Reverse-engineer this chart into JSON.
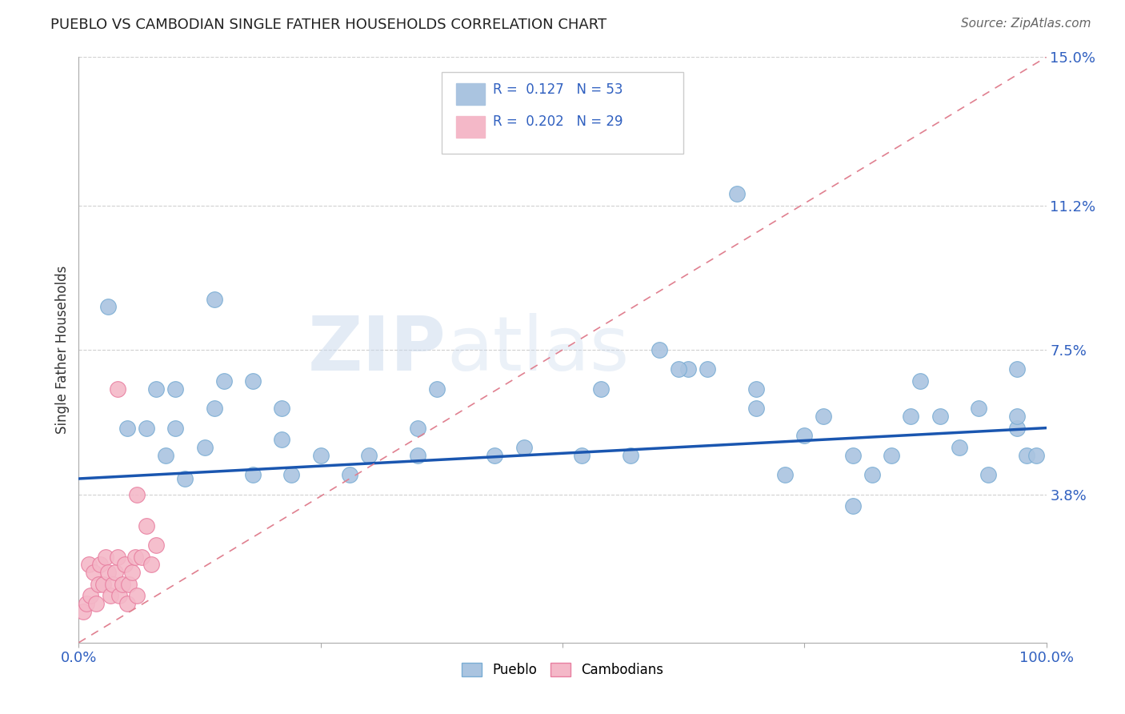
{
  "title": "PUEBLO VS CAMBODIAN SINGLE FATHER HOUSEHOLDS CORRELATION CHART",
  "source": "Source: ZipAtlas.com",
  "ylabel": "Single Father Households",
  "xlim": [
    0,
    1.0
  ],
  "ylim": [
    0,
    0.15
  ],
  "ytick_positions": [
    0.038,
    0.075,
    0.112,
    0.15
  ],
  "ytick_labels": [
    "3.8%",
    "7.5%",
    "11.2%",
    "15.0%"
  ],
  "pueblo_R": "0.127",
  "pueblo_N": "53",
  "cambodian_R": "0.202",
  "cambodian_N": "29",
  "pueblo_color": "#aac4e0",
  "pueblo_edge": "#7aadd4",
  "cambodian_color": "#f4b8c8",
  "cambodian_edge": "#e87fa0",
  "trend_blue_color": "#1a56b0",
  "trend_red_color": "#e08090",
  "watermark_zip": "ZIP",
  "watermark_atlas": "atlas",
  "pueblo_points_x": [
    0.03,
    0.08,
    0.14,
    0.05,
    0.07,
    0.09,
    0.11,
    0.13,
    0.1,
    0.1,
    0.14,
    0.15,
    0.18,
    0.21,
    0.21,
    0.22,
    0.18,
    0.25,
    0.28,
    0.3,
    0.35,
    0.35,
    0.37,
    0.43,
    0.46,
    0.52,
    0.54,
    0.57,
    0.6,
    0.63,
    0.65,
    0.68,
    0.7,
    0.73,
    0.75,
    0.77,
    0.8,
    0.82,
    0.84,
    0.86,
    0.87,
    0.89,
    0.91,
    0.93,
    0.94,
    0.7,
    0.97,
    0.97,
    0.97,
    0.98,
    0.62,
    0.99,
    0.8
  ],
  "pueblo_points_y": [
    0.086,
    0.065,
    0.088,
    0.055,
    0.055,
    0.048,
    0.042,
    0.05,
    0.065,
    0.055,
    0.06,
    0.067,
    0.067,
    0.06,
    0.052,
    0.043,
    0.043,
    0.048,
    0.043,
    0.048,
    0.048,
    0.055,
    0.065,
    0.048,
    0.05,
    0.048,
    0.065,
    0.048,
    0.075,
    0.07,
    0.07,
    0.115,
    0.06,
    0.043,
    0.053,
    0.058,
    0.048,
    0.043,
    0.048,
    0.058,
    0.067,
    0.058,
    0.05,
    0.06,
    0.043,
    0.065,
    0.07,
    0.055,
    0.058,
    0.048,
    0.07,
    0.048,
    0.035
  ],
  "cambodian_points_x": [
    0.005,
    0.008,
    0.01,
    0.012,
    0.015,
    0.018,
    0.02,
    0.022,
    0.025,
    0.028,
    0.03,
    0.033,
    0.035,
    0.038,
    0.04,
    0.042,
    0.045,
    0.048,
    0.05,
    0.052,
    0.055,
    0.058,
    0.06,
    0.065,
    0.07,
    0.075,
    0.08,
    0.04,
    0.06
  ],
  "cambodian_points_y": [
    0.008,
    0.01,
    0.02,
    0.012,
    0.018,
    0.01,
    0.015,
    0.02,
    0.015,
    0.022,
    0.018,
    0.012,
    0.015,
    0.018,
    0.022,
    0.012,
    0.015,
    0.02,
    0.01,
    0.015,
    0.018,
    0.022,
    0.012,
    0.022,
    0.03,
    0.02,
    0.025,
    0.065,
    0.038
  ],
  "blue_trend_x": [
    0.0,
    1.0
  ],
  "blue_trend_y": [
    0.042,
    0.055
  ],
  "red_trend_x": [
    0.0,
    0.2
  ],
  "red_trend_y": [
    0.008,
    0.048
  ]
}
